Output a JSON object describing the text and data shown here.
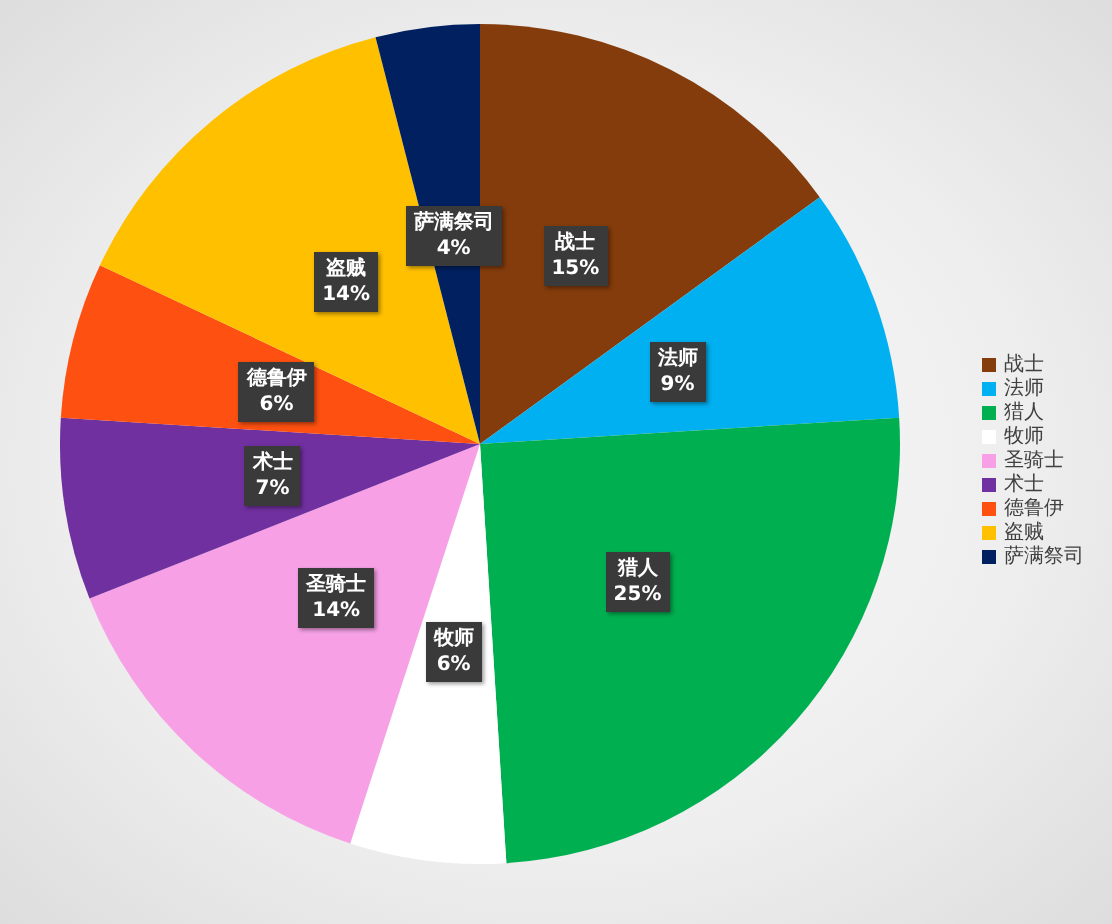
{
  "chart_data": {
    "type": "pie",
    "categories": [
      "战士",
      "法师",
      "猎人",
      "牧师",
      "圣骑士",
      "术士",
      "德鲁伊",
      "盗贼",
      "萨满祭司"
    ],
    "values": [
      15,
      9,
      25,
      6,
      14,
      7,
      6,
      14,
      4
    ],
    "colors": [
      "#843c0c",
      "#00b0f0",
      "#00b050",
      "#ffffff",
      "#f7a0e6",
      "#7030a0",
      "#fe5010",
      "#ffc000",
      "#002060"
    ],
    "value_labels": [
      "15%",
      "9%",
      "25%",
      "6%",
      "14%",
      "7%",
      "6%",
      "14%",
      "4%"
    ],
    "legend": "right"
  }
}
